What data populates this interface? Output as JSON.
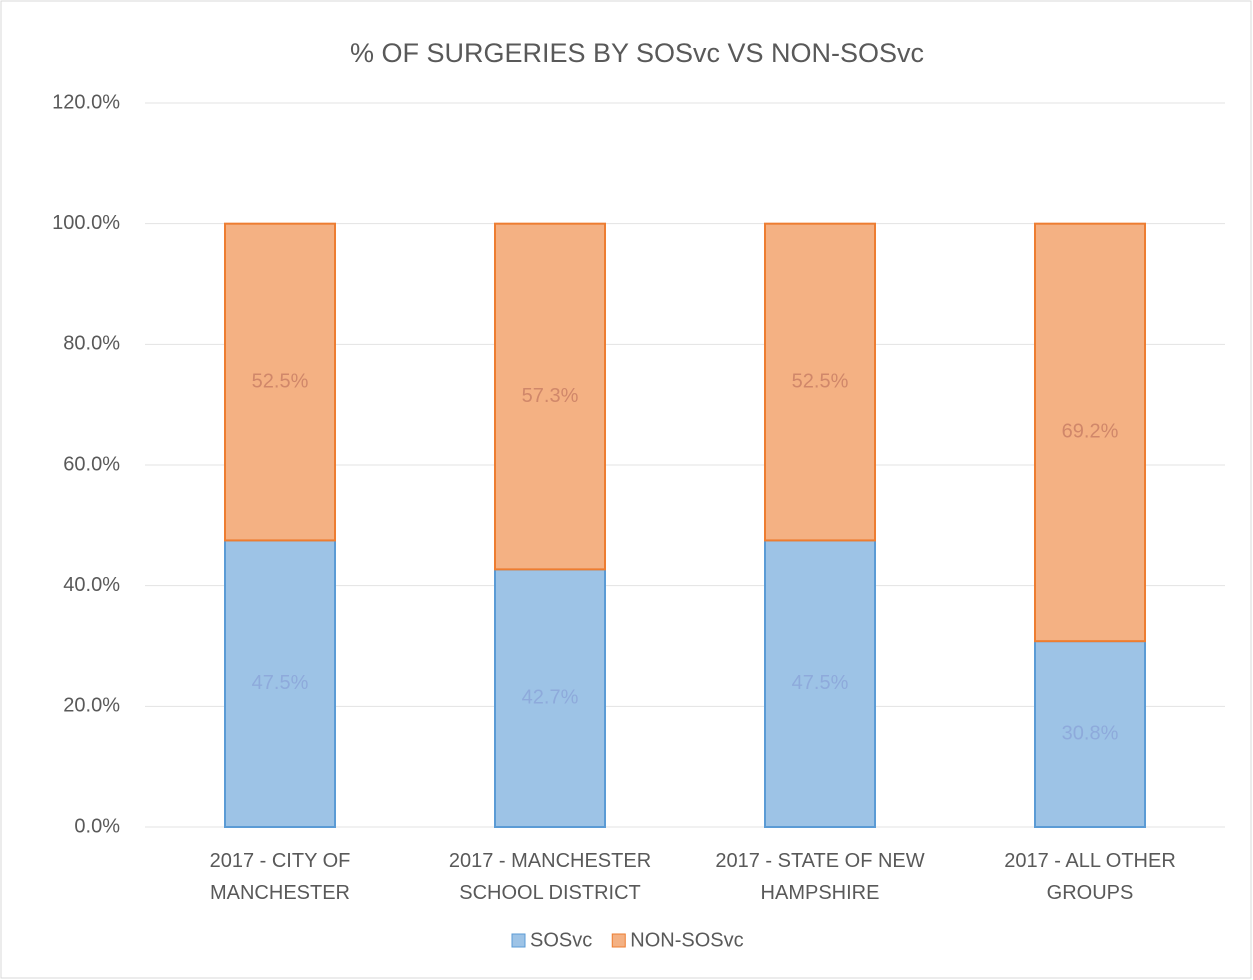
{
  "chart_data": {
    "type": "stacked_bar",
    "title": "% OF SURGERIES  BY SOSvc VS NON-SOSvc",
    "categories": [
      "2017 - CITY OF MANCHESTER",
      "2017 - MANCHESTER SCHOOL DISTRICT",
      "2017 - STATE OF NEW HAMPSHIRE",
      "2017 - ALL OTHER GROUPS"
    ],
    "series": [
      {
        "name": "SOSvc",
        "color": "#9dc3e6",
        "values": [
          47.5,
          42.7,
          47.5,
          30.8
        ],
        "value_labels": [
          "47.5%",
          "42.7%",
          "47.5%",
          "30.8%"
        ]
      },
      {
        "name": "NON-SOSvc",
        "color": "#f4b183",
        "values": [
          52.5,
          57.3,
          52.5,
          69.2
        ],
        "value_labels": [
          "52.5%",
          "57.3%",
          "52.5%",
          "69.2%"
        ]
      }
    ],
    "ylim": [
      0,
      120
    ],
    "yticks": [
      {
        "value": 0,
        "label": "0.0%"
      },
      {
        "value": 20,
        "label": "20.0%"
      },
      {
        "value": 40,
        "label": "40.0%"
      },
      {
        "value": 60,
        "label": "60.0%"
      },
      {
        "value": 80,
        "label": "80.0%"
      },
      {
        "value": 100,
        "label": "100.0%"
      },
      {
        "value": 120,
        "label": "120.0%"
      }
    ],
    "grid": true,
    "legend": "bottom"
  }
}
